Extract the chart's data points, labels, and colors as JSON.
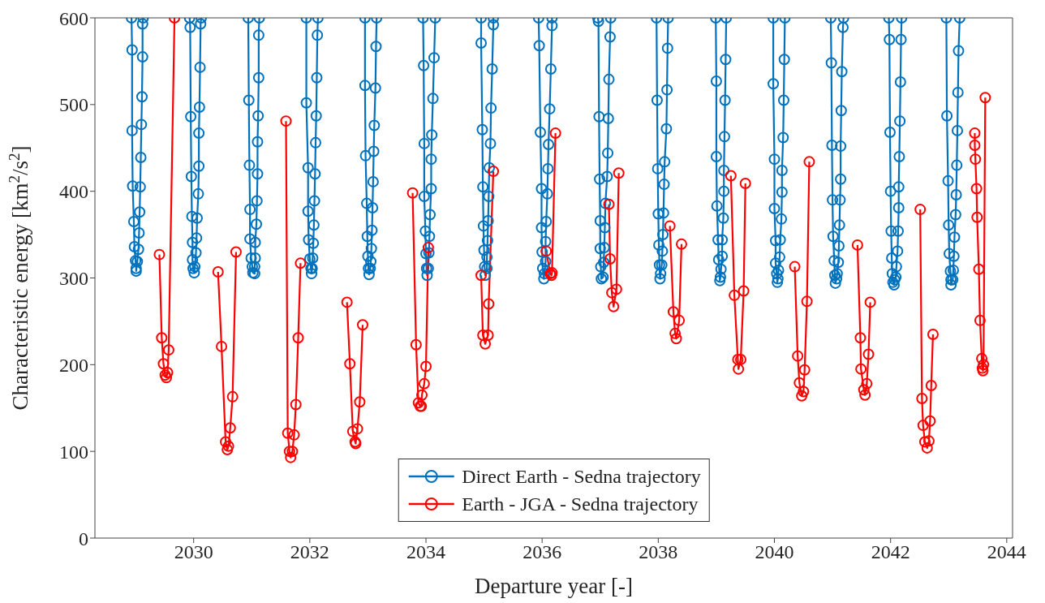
{
  "chart_data": {
    "type": "line",
    "xlabel": "Departure year [-]",
    "ylabel": "Characteristic energy [km$^{2}$/s$^{2}$]",
    "xlim": [
      2028.3,
      2044.1
    ],
    "xticks": [
      2030,
      2032,
      2034,
      2036,
      2038,
      2040,
      2042,
      2044
    ],
    "ylim": [
      0,
      600
    ],
    "yticks": [
      0,
      100,
      200,
      300,
      400,
      500,
      600
    ],
    "legend": "bottom",
    "marker": "circle",
    "line_style": "solid",
    "series": [
      {
        "name": "Direct Earth - Sedna trajectory",
        "color": "#0072bd",
        "x": [
          2028.93,
          2028.94,
          2028.94,
          2028.95,
          2028.97,
          2028.98,
          2029.0,
          2029.01,
          2029.01,
          2029.03,
          2029.05,
          2029.06,
          2029.07,
          2029.08,
          2029.09,
          2029.1,
          2029.11,
          2029.12,
          2029.12,
          2029.13,
          null,
          2029.93,
          2029.94,
          2029.95,
          2029.96,
          2029.97,
          2029.98,
          2029.98,
          2029.99,
          2030.01,
          2030.02,
          2030.04,
          2030.05,
          2030.06,
          2030.08,
          2030.09,
          2030.09,
          2030.1,
          2030.11,
          2030.12,
          2030.13,
          null,
          2030.94,
          2030.95,
          2030.96,
          2030.97,
          2030.97,
          2030.99,
          2031.01,
          2031.02,
          2031.05,
          2031.05,
          2031.06,
          2031.06,
          2031.08,
          2031.09,
          2031.1,
          2031.1,
          2031.11,
          2031.12,
          2031.12,
          2031.13,
          null,
          2031.94,
          2031.94,
          2031.97,
          2031.97,
          2031.98,
          2032.0,
          2032.02,
          2032.03,
          2032.04,
          2032.05,
          2032.06,
          2032.07,
          2032.08,
          2032.09,
          2032.1,
          2032.11,
          2032.12,
          2032.13,
          2032.14,
          null,
          2032.95,
          2032.95,
          2032.96,
          2032.98,
          2032.99,
          2033.0,
          2033.01,
          2033.02,
          2033.04,
          2033.05,
          2033.06,
          2033.07,
          2033.08,
          2033.09,
          2033.1,
          2033.11,
          2033.13,
          2033.14,
          2033.15,
          null,
          2033.95,
          2033.96,
          2033.97,
          2033.97,
          2033.99,
          2034.0,
          2034.01,
          2034.02,
          2034.04,
          2034.05,
          2034.06,
          2034.07,
          2034.09,
          2034.09,
          2034.1,
          2034.12,
          2034.14,
          2034.16,
          null,
          2034.95,
          2034.95,
          2034.97,
          2034.98,
          2034.99,
          2035.0,
          2035.01,
          2035.02,
          2035.05,
          2035.05,
          2035.06,
          2035.07,
          2035.08,
          2035.09,
          2035.11,
          2035.12,
          2035.14,
          2035.16,
          2035.16,
          null,
          2035.94,
          2035.95,
          2035.97,
          2035.99,
          2035.99,
          2036.0,
          2036.01,
          2036.03,
          2036.04,
          2036.06,
          2036.06,
          2036.07,
          2036.09,
          2036.1,
          2036.11,
          2036.13,
          2036.15,
          2036.17,
          2036.17,
          null,
          2036.96,
          2036.97,
          2036.98,
          2036.99,
          2037.0,
          2037.0,
          2037.01,
          2037.02,
          2037.05,
          2037.06,
          2037.07,
          2037.08,
          2037.09,
          2037.12,
          2037.13,
          2037.14,
          2037.15,
          2037.17,
          2037.18,
          null,
          2037.97,
          2037.98,
          2037.99,
          2038.0,
          2038.01,
          2038.02,
          2038.03,
          2038.04,
          2038.06,
          2038.07,
          2038.08,
          2038.09,
          2038.1,
          2038.11,
          2038.14,
          2038.15,
          2038.16,
          2038.17,
          null,
          2038.99,
          2039.0,
          2039.0,
          2039.01,
          2039.03,
          2039.04,
          2039.06,
          2039.07,
          2039.08,
          2039.1,
          2039.1,
          2039.12,
          2039.13,
          2039.13,
          2039.14,
          2039.15,
          2039.16,
          2039.17,
          null,
          2039.98,
          2039.98,
          2040.0,
          2040.0,
          2040.02,
          2040.02,
          2040.04,
          2040.05,
          2040.06,
          2040.07,
          2040.09,
          2040.1,
          2040.12,
          2040.13,
          2040.13,
          2040.15,
          2040.16,
          2040.17,
          2040.18,
          null,
          2040.97,
          2040.98,
          2040.99,
          2041.0,
          2041.01,
          2041.03,
          2041.04,
          2041.05,
          2041.07,
          2041.08,
          2041.1,
          2041.11,
          2041.12,
          2041.13,
          2041.14,
          2041.14,
          2041.15,
          2041.16,
          2041.18,
          2041.19,
          null,
          2041.97,
          2041.98,
          2041.99,
          2042.0,
          2042.01,
          2042.02,
          2042.03,
          2042.04,
          2042.06,
          2042.07,
          2042.09,
          2042.1,
          2042.12,
          2042.13,
          2042.14,
          2042.14,
          2042.15,
          2042.16,
          2042.17,
          2042.18,
          2042.19,
          null,
          2042.96,
          2042.97,
          2042.99,
          2043.0,
          2043.01,
          2043.03,
          2043.04,
          2043.04,
          2043.07,
          2043.08,
          2043.09,
          2043.1,
          2043.12,
          2043.13,
          2043.14,
          2043.15,
          2043.16,
          2043.17,
          2043.19
        ],
        "values": [
          600,
          563,
          470,
          406,
          365,
          336,
          320,
          311,
          308,
          319,
          333,
          352,
          376,
          405,
          439,
          477,
          509,
          555,
          593,
          600,
          null,
          600,
          589,
          486,
          417,
          371,
          341,
          321,
          311,
          306,
          313,
          329,
          346,
          369,
          397,
          429,
          467,
          497,
          543,
          593,
          600,
          null,
          600,
          505,
          430,
          379,
          345,
          323,
          313,
          306,
          305,
          313,
          323,
          341,
          362,
          389,
          420,
          457,
          487,
          531,
          580,
          600,
          null,
          600,
          502,
          427,
          377,
          344,
          322,
          311,
          305,
          311,
          323,
          340,
          361,
          389,
          420,
          456,
          487,
          531,
          580,
          600,
          null,
          600,
          522,
          441,
          386,
          348,
          325,
          311,
          304,
          311,
          319,
          334,
          355,
          381,
          411,
          446,
          476,
          519,
          567,
          600,
          null,
          600,
          545,
          455,
          394,
          354,
          328,
          311,
          303,
          311,
          329,
          348,
          373,
          403,
          437,
          465,
          507,
          554,
          600,
          null,
          600,
          571,
          471,
          405,
          360,
          332,
          313,
          303,
          311,
          324,
          343,
          366,
          394,
          427,
          455,
          496,
          541,
          592,
          600,
          null,
          600,
          568,
          468,
          403,
          358,
          330,
          311,
          299,
          305,
          319,
          342,
          365,
          397,
          426,
          454,
          495,
          541,
          591,
          600,
          null,
          600,
          596,
          486,
          414,
          366,
          334,
          313,
          299,
          301,
          318,
          335,
          358,
          386,
          417,
          444,
          484,
          529,
          578,
          600,
          null,
          600,
          505,
          426,
          374,
          338,
          315,
          299,
          305,
          315,
          331,
          350,
          375,
          408,
          434,
          472,
          517,
          565,
          600,
          null,
          600,
          527,
          440,
          383,
          344,
          321,
          297,
          301,
          310,
          325,
          344,
          369,
          400,
          424,
          463,
          505,
          552,
          600,
          null,
          600,
          524,
          437,
          380,
          343,
          317,
          305,
          295,
          299,
          309,
          324,
          344,
          368,
          399,
          424,
          462,
          505,
          552,
          600,
          null,
          600,
          548,
          453,
          390,
          348,
          320,
          303,
          294,
          299,
          305,
          318,
          337,
          361,
          390,
          414,
          452,
          493,
          538,
          589,
          600,
          null,
          600,
          575,
          468,
          400,
          354,
          323,
          305,
          295,
          292,
          298,
          301,
          313,
          331,
          354,
          381,
          405,
          440,
          481,
          526,
          575,
          600,
          null,
          600,
          487,
          412,
          361,
          328,
          308,
          298,
          292,
          298,
          309,
          325,
          347,
          373,
          396,
          430,
          470,
          514,
          562,
          600
        ]
      },
      {
        "name": "Earth - JGA - Sedna trajectory",
        "color": "#ff0000",
        "x": [
          2029.41,
          2029.45,
          2029.48,
          2029.51,
          2029.53,
          2029.55,
          2029.57,
          2029.67,
          null,
          2030.42,
          2030.48,
          2030.55,
          2030.58,
          2030.6,
          2030.63,
          2030.67,
          2030.73,
          null,
          2031.59,
          2031.62,
          2031.65,
          2031.67,
          2031.7,
          2031.73,
          2031.76,
          2031.8,
          2031.84,
          null,
          2032.64,
          2032.69,
          2032.74,
          2032.78,
          2032.79,
          2032.82,
          2032.86,
          2032.91,
          null,
          2033.77,
          2033.83,
          2033.87,
          2033.9,
          2033.92,
          2033.93,
          2033.97,
          2034.0,
          2034.04,
          null,
          2034.95,
          2034.98,
          2035.02,
          2035.07,
          2035.08,
          2035.16,
          null,
          2036.07,
          2036.14,
          2036.16,
          2036.17,
          2036.23,
          null,
          2037.15,
          2037.17,
          2037.2,
          2037.23,
          2037.28,
          2037.32,
          null,
          2038.2,
          2038.26,
          2038.29,
          2038.31,
          2038.36,
          2038.4,
          null,
          2039.25,
          2039.31,
          2039.37,
          2039.38,
          2039.42,
          2039.47,
          2039.5,
          null,
          2040.35,
          2040.4,
          2040.43,
          2040.47,
          2040.5,
          2040.52,
          2040.56,
          2040.6,
          null,
          2041.43,
          2041.48,
          2041.49,
          2041.54,
          2041.56,
          2041.59,
          2041.62,
          2041.65,
          null,
          2042.51,
          2042.54,
          2042.56,
          2042.59,
          2042.63,
          2042.66,
          2042.68,
          2042.7,
          2042.73,
          null,
          2043.45,
          2043.45,
          2043.46,
          2043.48,
          2043.49,
          2043.52,
          2043.54,
          2043.57,
          2043.58,
          2043.59,
          2043.6,
          2043.63
        ],
        "values": [
          327,
          231,
          201,
          188,
          185,
          191,
          217,
          600,
          null,
          307,
          221,
          111,
          102,
          106,
          127,
          163,
          330,
          null,
          481,
          121,
          100,
          93,
          100,
          119,
          154,
          231,
          317,
          null,
          272,
          201,
          123,
          111,
          109,
          126,
          157,
          246,
          null,
          398,
          223,
          156,
          152,
          152,
          165,
          178,
          198,
          335,
          null,
          303,
          234,
          224,
          234,
          270,
          423,
          null,
          331,
          305,
          303,
          306,
          467,
          null,
          385,
          322,
          283,
          267,
          287,
          421,
          null,
          360,
          261,
          236,
          230,
          251,
          339,
          null,
          418,
          280,
          206,
          195,
          206,
          285,
          409,
          null,
          313,
          210,
          179,
          164,
          169,
          194,
          273,
          434,
          null,
          338,
          231,
          195,
          171,
          165,
          178,
          212,
          272,
          null,
          379,
          161,
          130,
          111,
          104,
          112,
          135,
          176,
          235,
          null,
          467,
          453,
          437,
          403,
          370,
          310,
          251,
          207,
          196,
          193,
          200,
          508
        ]
      }
    ]
  }
}
